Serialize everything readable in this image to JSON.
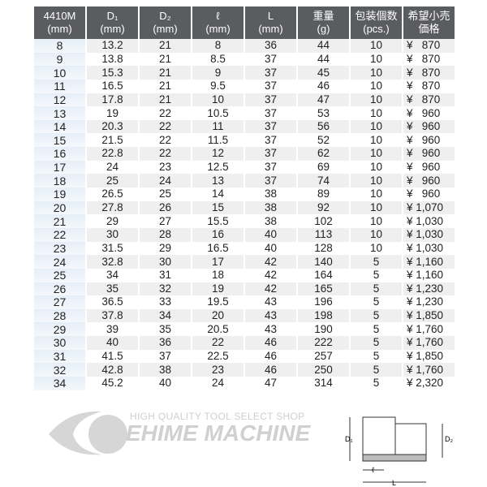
{
  "headers": [
    [
      "4410M",
      "(mm)"
    ],
    [
      "D₁",
      "(mm)"
    ],
    [
      "D₂",
      "(mm)"
    ],
    [
      "ℓ",
      "(mm)"
    ],
    [
      "L",
      "(mm)"
    ],
    [
      "重量",
      "(g)"
    ],
    [
      "包装個数",
      "(pcs.)"
    ],
    [
      "希望小売",
      "価格"
    ]
  ],
  "rows": [
    [
      "8",
      "13.2",
      "21",
      "8",
      "36",
      "44",
      "10",
      "¥   870"
    ],
    [
      "9",
      "13.8",
      "21",
      "8.5",
      "37",
      "44",
      "10",
      "¥   870"
    ],
    [
      "10",
      "15.3",
      "21",
      "9",
      "37",
      "45",
      "10",
      "¥   870"
    ],
    [
      "11",
      "16.5",
      "21",
      "9.5",
      "37",
      "46",
      "10",
      "¥   870"
    ],
    [
      "12",
      "17.8",
      "21",
      "10",
      "37",
      "47",
      "10",
      "¥   870"
    ],
    [
      "13",
      "19",
      "22",
      "10.5",
      "37",
      "53",
      "10",
      "¥   960"
    ],
    [
      "14",
      "20.3",
      "22",
      "11",
      "37",
      "56",
      "10",
      "¥   960"
    ],
    [
      "15",
      "21.5",
      "22",
      "11.5",
      "37",
      "52",
      "10",
      "¥   960"
    ],
    [
      "16",
      "22.8",
      "22",
      "12",
      "37",
      "62",
      "10",
      "¥   960"
    ],
    [
      "17",
      "24",
      "23",
      "12.5",
      "37",
      "69",
      "10",
      "¥   960"
    ],
    [
      "18",
      "25",
      "24",
      "13",
      "37",
      "74",
      "10",
      "¥   960"
    ],
    [
      "19",
      "26.5",
      "25",
      "14",
      "38",
      "89",
      "10",
      "¥   960"
    ],
    [
      "20",
      "27.8",
      "26",
      "15",
      "38",
      "92",
      "10",
      "¥ 1,070"
    ],
    [
      "21",
      "29",
      "27",
      "15.5",
      "38",
      "102",
      "10",
      "¥ 1,030"
    ],
    [
      "22",
      "30",
      "28",
      "16",
      "40",
      "113",
      "10",
      "¥ 1,030"
    ],
    [
      "23",
      "31.5",
      "29",
      "16.5",
      "40",
      "128",
      "10",
      "¥ 1,030"
    ],
    [
      "24",
      "32.8",
      "30",
      "17",
      "42",
      "140",
      "5",
      "¥ 1,160"
    ],
    [
      "25",
      "34",
      "31",
      "18",
      "42",
      "164",
      "5",
      "¥ 1,160"
    ],
    [
      "26",
      "35",
      "32",
      "19",
      "42",
      "165",
      "5",
      "¥ 1,230"
    ],
    [
      "27",
      "36.5",
      "33",
      "19.5",
      "43",
      "196",
      "5",
      "¥ 1,230"
    ],
    [
      "28",
      "37.8",
      "34",
      "20",
      "43",
      "198",
      "5",
      "¥ 1,850"
    ],
    [
      "29",
      "39",
      "35",
      "20.5",
      "43",
      "190",
      "5",
      "¥ 1,760"
    ],
    [
      "30",
      "40",
      "36",
      "22",
      "46",
      "222",
      "5",
      "¥ 1,760"
    ],
    [
      "31",
      "41.5",
      "37",
      "22.5",
      "46",
      "257",
      "5",
      "¥ 1,850"
    ],
    [
      "32",
      "42.8",
      "38",
      "23",
      "46",
      "250",
      "5",
      "¥ 1,760"
    ],
    [
      "34",
      "45.2",
      "40",
      "24",
      "47",
      "314",
      "5",
      "¥ 2,320"
    ]
  ],
  "watermark": {
    "tagline": "HIGH QUALITY TOOL SELECT SHOP",
    "brand": "EHIME MACHINE"
  },
  "diagram": {
    "d1": "D₁",
    "d2": "D₂",
    "l_small": "ℓ",
    "l_big": "L"
  }
}
